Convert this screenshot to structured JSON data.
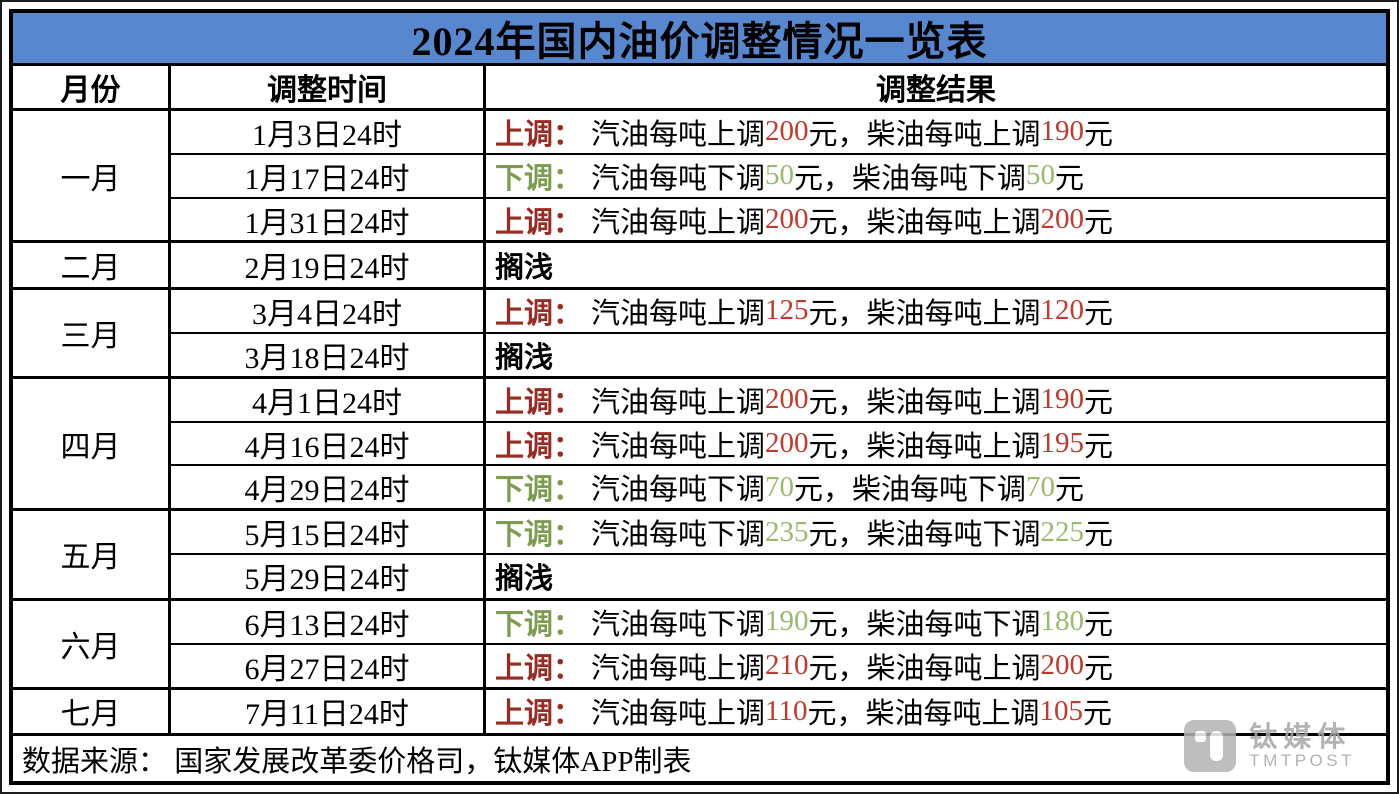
{
  "page": {
    "title": "2024年国内油价调整情况一览表"
  },
  "header": {
    "month": "月份",
    "time": "调整时间",
    "result": "调整结果"
  },
  "colors": {
    "title_bg": "#5787CE",
    "up_label": "#9A2B22",
    "up_num": "#C13A2D",
    "down_label": "#7E9C50",
    "down_num": "#9CBA6E",
    "border": "#000000",
    "wm_logo_bg": "#B3B3B3",
    "wm_text": "#A6A6A6"
  },
  "months": [
    {
      "month": "一月",
      "rows": [
        {
          "time": "1月3日24时",
          "type": "up",
          "label": "上调：",
          "segments": [
            {
              "t": "汽油每吨上调"
            },
            {
              "t": "200",
              "n": true
            },
            {
              "t": "元，柴油每吨上调"
            },
            {
              "t": "190",
              "n": true
            },
            {
              "t": "元"
            }
          ]
        },
        {
          "time": "1月17日24时",
          "type": "down",
          "label": "下调：",
          "segments": [
            {
              "t": "汽油每吨下调"
            },
            {
              "t": "50",
              "n": true
            },
            {
              "t": "元，柴油每吨下调"
            },
            {
              "t": "50",
              "n": true
            },
            {
              "t": "元"
            }
          ]
        },
        {
          "time": "1月31日24时",
          "type": "up",
          "label": "上调：",
          "segments": [
            {
              "t": "汽油每吨上调"
            },
            {
              "t": "200",
              "n": true
            },
            {
              "t": "元，柴油每吨上调"
            },
            {
              "t": "200",
              "n": true
            },
            {
              "t": "元"
            }
          ]
        }
      ]
    },
    {
      "month": "二月",
      "rows": [
        {
          "time": "2月19日24时",
          "type": "stranded",
          "label": "搁浅",
          "segments": []
        }
      ]
    },
    {
      "month": "三月",
      "rows": [
        {
          "time": "3月4日24时",
          "type": "up",
          "label": "上调：",
          "segments": [
            {
              "t": "汽油每吨上调"
            },
            {
              "t": "125",
              "n": true
            },
            {
              "t": "元，柴油每吨上调"
            },
            {
              "t": "120",
              "n": true
            },
            {
              "t": "元"
            }
          ]
        },
        {
          "time": "3月18日24时",
          "type": "stranded",
          "label": "搁浅",
          "segments": []
        }
      ]
    },
    {
      "month": "四月",
      "rows": [
        {
          "time": "4月1日24时",
          "type": "up",
          "label": "上调：",
          "segments": [
            {
              "t": "汽油每吨上调"
            },
            {
              "t": "200",
              "n": true
            },
            {
              "t": "元，柴油每吨上调"
            },
            {
              "t": "190",
              "n": true
            },
            {
              "t": "元"
            }
          ]
        },
        {
          "time": "4月16日24时",
          "type": "up",
          "label": "上调：",
          "segments": [
            {
              "t": "汽油每吨上调"
            },
            {
              "t": "200",
              "n": true
            },
            {
              "t": "元，柴油每吨上调"
            },
            {
              "t": "195",
              "n": true
            },
            {
              "t": "元"
            }
          ]
        },
        {
          "time": "4月29日24时",
          "type": "down",
          "label": "下调：",
          "segments": [
            {
              "t": "汽油每吨下调"
            },
            {
              "t": "70",
              "n": true
            },
            {
              "t": "元，柴油每吨下调"
            },
            {
              "t": "70",
              "n": true
            },
            {
              "t": "元"
            }
          ]
        }
      ]
    },
    {
      "month": "五月",
      "rows": [
        {
          "time": "5月15日24时",
          "type": "down",
          "label": "下调：",
          "segments": [
            {
              "t": "汽油每吨下调"
            },
            {
              "t": "235",
              "n": true
            },
            {
              "t": "元，柴油每吨下调"
            },
            {
              "t": "225",
              "n": true
            },
            {
              "t": "元"
            }
          ]
        },
        {
          "time": "5月29日24时",
          "type": "stranded",
          "label": "搁浅",
          "segments": []
        }
      ]
    },
    {
      "month": "六月",
      "rows": [
        {
          "time": "6月13日24时",
          "type": "down",
          "label": "下调：",
          "segments": [
            {
              "t": "汽油每吨下调"
            },
            {
              "t": "190",
              "n": true
            },
            {
              "t": "元，柴油每吨下调"
            },
            {
              "t": "180",
              "n": true
            },
            {
              "t": "元"
            }
          ]
        },
        {
          "time": "6月27日24时",
          "type": "up",
          "label": "上调：",
          "segments": [
            {
              "t": "汽油每吨上调"
            },
            {
              "t": "210",
              "n": true
            },
            {
              "t": "元，柴油每吨上调"
            },
            {
              "t": "200",
              "n": true
            },
            {
              "t": "元"
            }
          ]
        }
      ]
    },
    {
      "month": "七月",
      "rows": [
        {
          "time": "7月11日24时",
          "type": "up",
          "label": "上调：",
          "segments": [
            {
              "t": "汽油每吨上调"
            },
            {
              "t": "110",
              "n": true
            },
            {
              "t": "元，柴油每吨上调"
            },
            {
              "t": "105",
              "n": true
            },
            {
              "t": "元"
            }
          ]
        }
      ]
    }
  ],
  "footer": {
    "text": "数据来源： 国家发展改革委价格司，钛媒体APP制表"
  },
  "watermark": {
    "icon": "tmtpost-logo",
    "cn": "钛媒体",
    "en": "TMTPOST"
  },
  "chart_data": {
    "type": "table",
    "title": "2024年国内油价调整情况一览表",
    "columns": [
      "月份",
      "调整时间",
      "调整结果"
    ],
    "rows": [
      [
        "一月",
        "1月3日24时",
        "上调：汽油每吨上调200元，柴油每吨上调190元"
      ],
      [
        "一月",
        "1月17日24时",
        "下调：汽油每吨下调50元，柴油每吨下调50元"
      ],
      [
        "一月",
        "1月31日24时",
        "上调：汽油每吨上调200元，柴油每吨上调200元"
      ],
      [
        "二月",
        "2月19日24时",
        "搁浅"
      ],
      [
        "三月",
        "3月4日24时",
        "上调：汽油每吨上调125元，柴油每吨上调120元"
      ],
      [
        "三月",
        "3月18日24时",
        "搁浅"
      ],
      [
        "四月",
        "4月1日24时",
        "上调：汽油每吨上调200元，柴油每吨上调190元"
      ],
      [
        "四月",
        "4月16日24时",
        "上调：汽油每吨上调200元，柴油每吨上调195元"
      ],
      [
        "四月",
        "4月29日24时",
        "下调：汽油每吨下调70元，柴油每吨下调70元"
      ],
      [
        "五月",
        "5月15日24时",
        "下调：汽油每吨下调235元，柴油每吨下调225元"
      ],
      [
        "五月",
        "5月29日24时",
        "搁浅"
      ],
      [
        "六月",
        "6月13日24时",
        "下调：汽油每吨下调190元，柴油每吨下调180元"
      ],
      [
        "六月",
        "6月27日24时",
        "上调：汽油每吨上调210元，柴油每吨上调200元"
      ],
      [
        "七月",
        "7月11日24时",
        "上调：汽油每吨上调110元，柴油每吨上调105元"
      ]
    ],
    "source": "数据来源： 国家发展改革委价格司，钛媒体APP制表"
  }
}
